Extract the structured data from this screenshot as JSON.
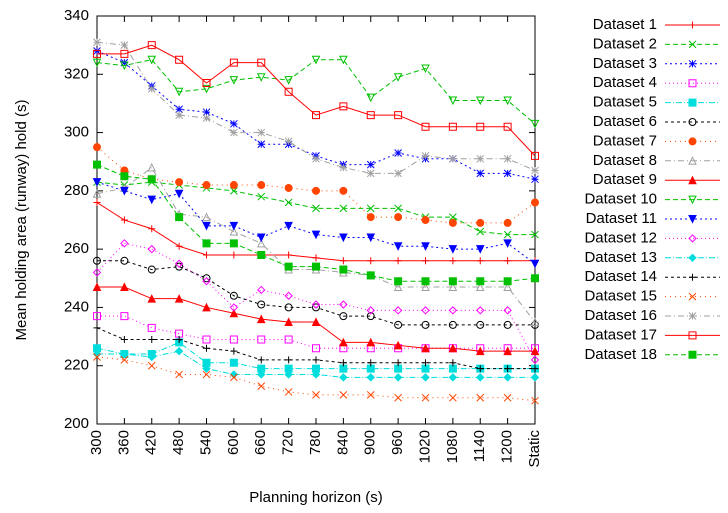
{
  "chart_data": {
    "type": "line",
    "x_label": "Planning horizon (s)",
    "y_label": "Mean holding area (runway) hold (s)",
    "categories": [
      "300",
      "360",
      "420",
      "480",
      "540",
      "600",
      "660",
      "720",
      "780",
      "840",
      "900",
      "960",
      "1020",
      "1080",
      "1140",
      "1200",
      "Static"
    ],
    "ylim": [
      200,
      340
    ],
    "yticks": [
      200,
      220,
      240,
      260,
      280,
      300,
      320,
      340
    ],
    "grid": false,
    "legend": "outside-right",
    "series": [
      {
        "name": "Dataset 1",
        "color": "#ff0000",
        "values": [
          276,
          270,
          267,
          261,
          258,
          258,
          258,
          258,
          257,
          256,
          256,
          256,
          256,
          256,
          256,
          256,
          256
        ]
      },
      {
        "name": "Dataset 2",
        "color": "#00c000",
        "values": [
          283,
          282,
          283,
          282,
          281,
          280,
          278,
          276,
          274,
          274,
          274,
          274,
          271,
          271,
          266,
          265,
          265
        ]
      },
      {
        "name": "Dataset 3",
        "color": "#0000ff",
        "values": [
          328,
          324,
          316,
          308,
          307,
          303,
          296,
          296,
          292,
          289,
          289,
          293,
          291,
          291,
          286,
          286,
          284
        ]
      },
      {
        "name": "Dataset 4",
        "color": "#ff00ff",
        "values": [
          237,
          237,
          233,
          231,
          229,
          229,
          229,
          229,
          226,
          226,
          226,
          226,
          226,
          226,
          226,
          226,
          226
        ]
      },
      {
        "name": "Dataset 5",
        "color": "#00dddd",
        "values": [
          226,
          224,
          224,
          228,
          221,
          221,
          219,
          219,
          219,
          219,
          219,
          219,
          219,
          219,
          219,
          219,
          219
        ]
      },
      {
        "name": "Dataset 6",
        "color": "#000000",
        "values": [
          256,
          256,
          253,
          254,
          250,
          244,
          241,
          240,
          240,
          237,
          237,
          234,
          234,
          234,
          234,
          234,
          234
        ]
      },
      {
        "name": "Dataset 7",
        "color": "#ff4500",
        "values": [
          295,
          287,
          284,
          283,
          282,
          282,
          282,
          281,
          280,
          280,
          271,
          271,
          270,
          269,
          269,
          269,
          276
        ]
      },
      {
        "name": "Dataset 8",
        "color": "#a0a0a0",
        "values": [
          279,
          281,
          288,
          272,
          271,
          266,
          262,
          253,
          253,
          252,
          251,
          247,
          247,
          247,
          247,
          247,
          235
        ]
      },
      {
        "name": "Dataset 9",
        "color": "#ff0000",
        "values": [
          247,
          247,
          243,
          243,
          240,
          238,
          236,
          235,
          235,
          228,
          228,
          227,
          226,
          226,
          225,
          225,
          225
        ]
      },
      {
        "name": "Dataset 10",
        "color": "#00c000",
        "values": [
          324,
          323,
          325,
          314,
          315,
          318,
          319,
          318,
          325,
          325,
          312,
          319,
          322,
          311,
          311,
          311,
          303
        ]
      },
      {
        "name": "Dataset 11",
        "color": "#0000ff",
        "values": [
          283,
          280,
          277,
          279,
          268,
          268,
          264,
          268,
          265,
          264,
          264,
          261,
          261,
          260,
          260,
          262,
          255
        ]
      },
      {
        "name": "Dataset 12",
        "color": "#ff00ff",
        "values": [
          252,
          262,
          260,
          255,
          249,
          240,
          246,
          244,
          241,
          241,
          239,
          239,
          239,
          239,
          239,
          239,
          222
        ]
      },
      {
        "name": "Dataset 13",
        "color": "#00dddd",
        "values": [
          224,
          224,
          223,
          225,
          219,
          217,
          217,
          217,
          217,
          216,
          216,
          216,
          216,
          216,
          216,
          216,
          216
        ]
      },
      {
        "name": "Dataset 14",
        "color": "#000000",
        "values": [
          233,
          229,
          229,
          229,
          226,
          225,
          222,
          222,
          222,
          221,
          221,
          221,
          221,
          221,
          219,
          219,
          219
        ]
      },
      {
        "name": "Dataset 15",
        "color": "#ff4500",
        "values": [
          223,
          222,
          220,
          217,
          217,
          216,
          213,
          211,
          210,
          210,
          210,
          209,
          209,
          209,
          209,
          209,
          208
        ]
      },
      {
        "name": "Dataset 16",
        "color": "#a0a0a0",
        "values": [
          331,
          330,
          315,
          306,
          305,
          300,
          300,
          297,
          291,
          288,
          286,
          286,
          292,
          291,
          291,
          291,
          287
        ]
      },
      {
        "name": "Dataset 17",
        "color": "#ff0000",
        "values": [
          327,
          327,
          330,
          325,
          317,
          324,
          324,
          314,
          306,
          309,
          306,
          306,
          302,
          302,
          302,
          302,
          292
        ]
      },
      {
        "name": "Dataset 18",
        "color": "#00c000",
        "values": [
          289,
          285,
          284,
          271,
          262,
          262,
          258,
          254,
          254,
          253,
          251,
          249,
          249,
          249,
          249,
          249,
          250
        ]
      }
    ]
  }
}
